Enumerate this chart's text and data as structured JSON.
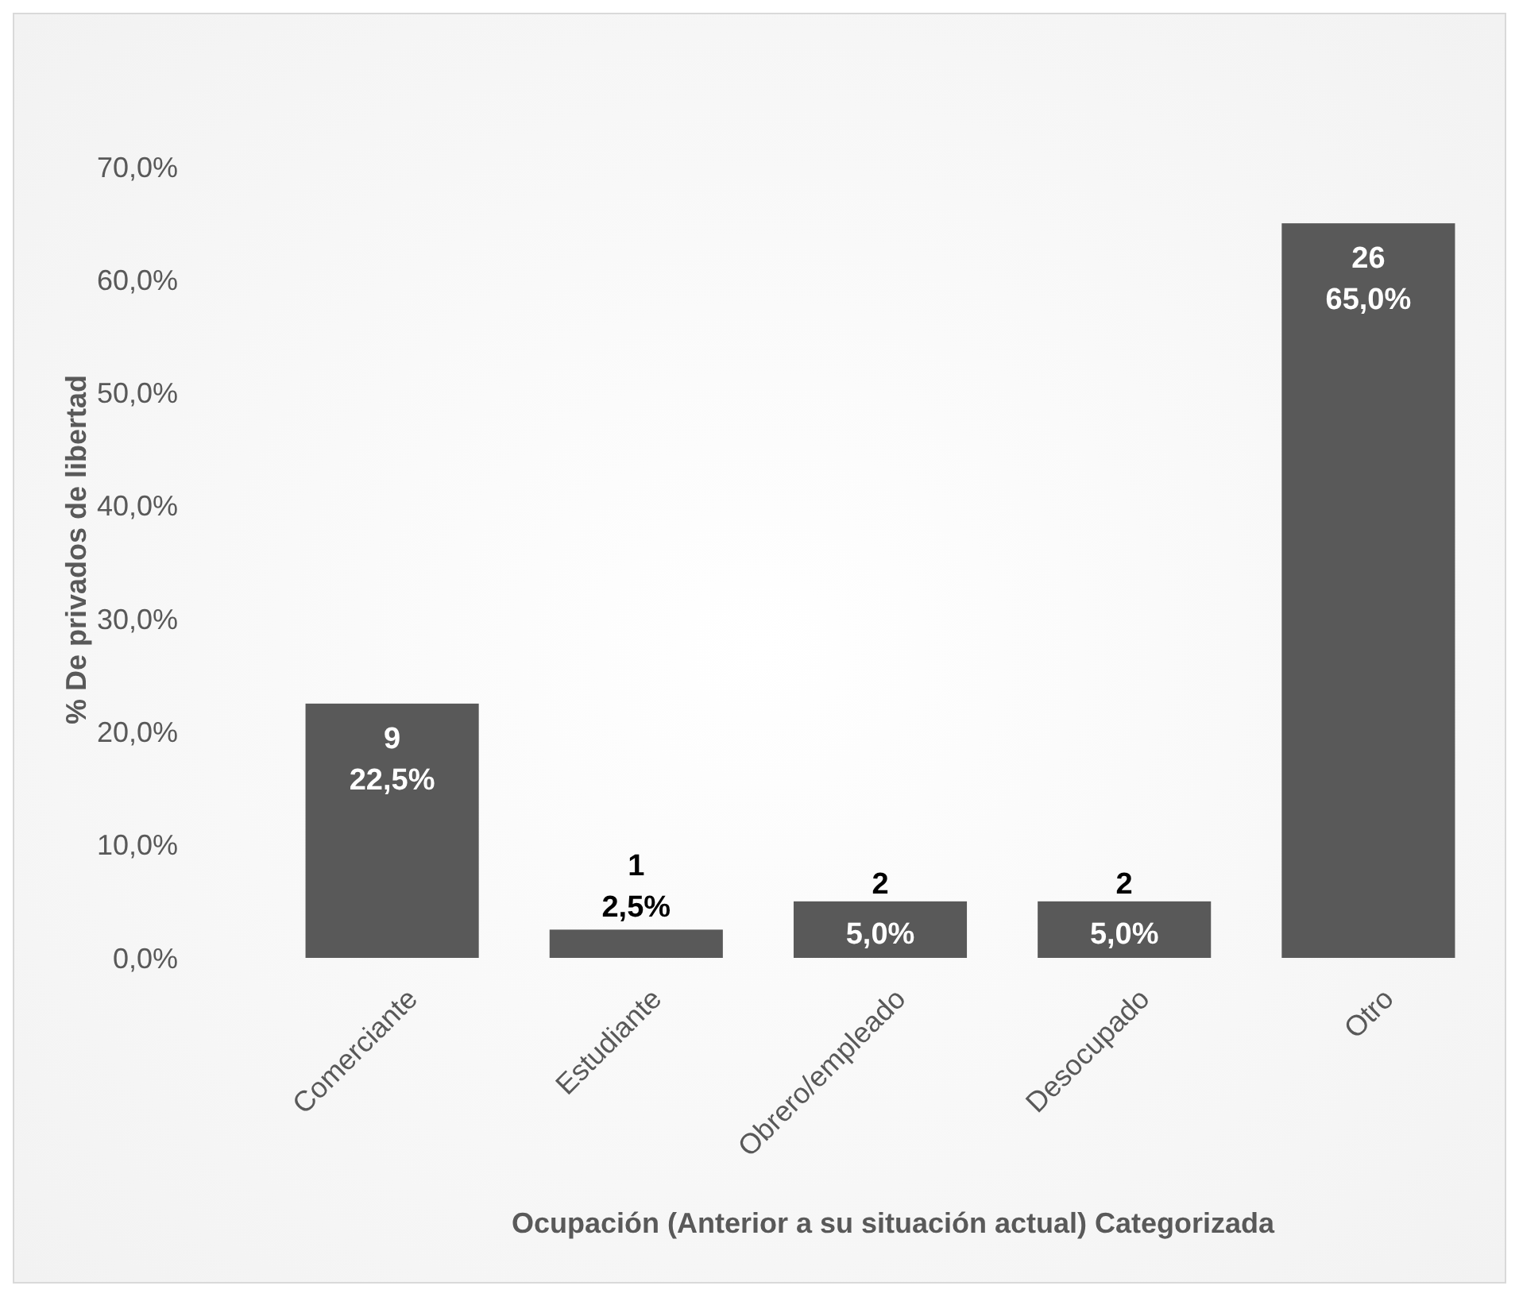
{
  "chart_data": {
    "type": "bar",
    "xlabel": "Ocupación (Anterior a su situación actual) Categorizada",
    "ylabel": "% De privados de libertad",
    "categories": [
      "Comerciante",
      "Estudiante",
      "Obrero/empleado",
      "Desocupado",
      "Otro"
    ],
    "values": [
      22.5,
      2.5,
      5.0,
      5.0,
      65.0
    ],
    "value_labels": [
      "9\n22,5%",
      "1\n2,5%",
      "2\n5,0%",
      "2\n5,0%",
      "26\n65,0%"
    ],
    "color": "#595959",
    "ylim": [
      0,
      70
    ],
    "yticks": [
      {
        "value": 0,
        "label": "0,0%"
      },
      {
        "value": 10,
        "label": "10,0%"
      },
      {
        "value": 20,
        "label": "20,0%"
      },
      {
        "value": 30,
        "label": "30,0%"
      },
      {
        "value": 40,
        "label": "40,0%"
      },
      {
        "value": 50,
        "label": "50,0%"
      },
      {
        "value": 60,
        "label": "60,0%"
      },
      {
        "value": 70,
        "label": "70,0%"
      }
    ],
    "grid": false
  }
}
